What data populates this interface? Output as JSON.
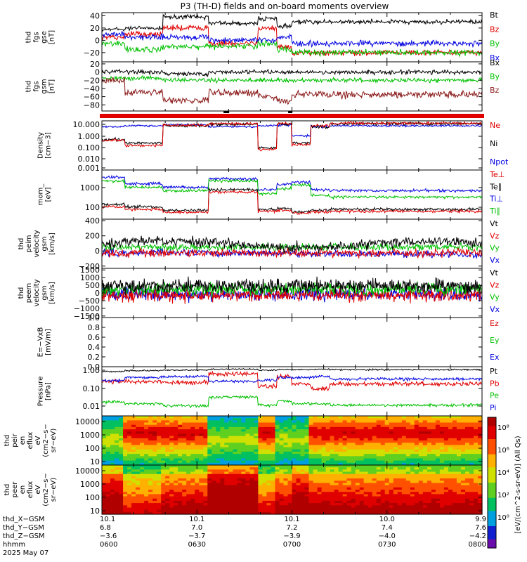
{
  "title": "P3 (TH-D) fields and on-board moments overview",
  "colors": {
    "black": "#000000",
    "red": "#e00000",
    "green": "#00c000",
    "blue": "#0000e0",
    "darkred": "#8b1a1a"
  },
  "chart_data": [
    {
      "type": "line",
      "panel": "fgs_gse",
      "ylabel": [
        "thd",
        "fgs",
        "gse",
        "[nT]"
      ],
      "yticks": [
        "40",
        "20",
        "0",
        "−20"
      ],
      "ylim": [
        -35,
        45
      ],
      "series": [
        {
          "name": "Bt",
          "color": "black",
          "level": [
            18,
            20,
            38,
            28,
            35,
            22,
            30
          ]
        },
        {
          "name": "Bz",
          "color": "red",
          "level": [
            5,
            10,
            20,
            -5,
            20,
            -10,
            -20
          ]
        },
        {
          "name": "By",
          "color": "green",
          "level": [
            -5,
            -15,
            -10,
            -10,
            -5,
            -15,
            -20
          ]
        },
        {
          "name": "Bx",
          "color": "blue",
          "level": [
            10,
            5,
            5,
            0,
            0,
            5,
            -5
          ]
        }
      ]
    },
    {
      "type": "line",
      "panel": "fgs_gsm",
      "ylabel": [
        "thd",
        "fgs",
        "gsm",
        "[nT]"
      ],
      "yticks": [
        "20",
        "0",
        "−20",
        "−40",
        "−60",
        "−80"
      ],
      "ylim": [
        -95,
        25
      ],
      "series": [
        {
          "name": "Bx",
          "color": "black",
          "level": [
            0,
            0,
            -5,
            0,
            0,
            0,
            0
          ]
        },
        {
          "name": "By",
          "color": "green",
          "level": [
            -15,
            -15,
            -20,
            -20,
            -20,
            -20,
            -20
          ]
        },
        {
          "name": "Bz",
          "color": "darkred",
          "level": [
            -20,
            -50,
            -70,
            -50,
            -60,
            -70,
            -55
          ]
        }
      ]
    },
    {
      "type": "line",
      "panel": "density",
      "ylabel": [
        "Density",
        "[cm−3]"
      ],
      "yticks": [
        "10.000",
        "1.000",
        "0.100",
        "0.010",
        "0.001"
      ],
      "ylim": [
        "1e-4",
        "30"
      ],
      "yscale": "log",
      "series": [
        {
          "name": "Ne",
          "color": "red"
        },
        {
          "name": "Ni",
          "color": "black"
        },
        {
          "name": "Npot",
          "color": "blue"
        }
      ]
    },
    {
      "type": "line",
      "panel": "temperature",
      "ylabel": [
        "mom_",
        "[eV]"
      ],
      "yticks": [
        "1000",
        "100"
      ],
      "yscale": "log",
      "series": [
        {
          "name": "Te⊥",
          "color": "red"
        },
        {
          "name": "Te∥",
          "color": "black"
        },
        {
          "name": "Ti⊥",
          "color": "blue"
        },
        {
          "name": "Ti∥",
          "color": "green"
        }
      ]
    },
    {
      "type": "line",
      "panel": "peim_velocity",
      "ylabel": [
        "thd",
        "peim",
        "velocity",
        "gsm",
        "[km/s]"
      ],
      "yticks": [
        "400",
        "200",
        "0",
        "−200"
      ],
      "ylim": [
        -230,
        420
      ],
      "series": [
        {
          "name": "Vt",
          "color": "black"
        },
        {
          "name": "Vz",
          "color": "red"
        },
        {
          "name": "Vy",
          "color": "green"
        },
        {
          "name": "Vx",
          "color": "blue"
        }
      ]
    },
    {
      "type": "line",
      "panel": "peem_velocity",
      "ylabel": [
        "thd",
        "peem",
        "velocity",
        "gsm",
        "[km/s]"
      ],
      "yticks": [
        "1500",
        "1000",
        "500",
        "0",
        "−500",
        "−1000",
        "−1500"
      ],
      "ylim": [
        -1600,
        1600
      ],
      "series": [
        {
          "name": "Vt",
          "color": "black"
        },
        {
          "name": "Vz",
          "color": "red"
        },
        {
          "name": "Vy",
          "color": "green"
        },
        {
          "name": "Vx",
          "color": "blue"
        }
      ]
    },
    {
      "type": "line",
      "panel": "efield",
      "ylabel": [
        "E=−VxB",
        "[mV/m]"
      ],
      "yticks": [
        "1.0",
        "0.8",
        "0.6",
        "0.4",
        "0.2",
        "0.0"
      ],
      "ylim": [
        0,
        1
      ],
      "series": [
        {
          "name": "Ez",
          "color": "red"
        },
        {
          "name": "Ey",
          "color": "green"
        },
        {
          "name": "Ex",
          "color": "blue"
        }
      ]
    },
    {
      "type": "line",
      "panel": "pressure",
      "ylabel": [
        "Pressure",
        "[nPa]"
      ],
      "yticks": [
        "1.00",
        "0.10",
        "0.01"
      ],
      "yscale": "log",
      "series": [
        {
          "name": "Pt",
          "color": "black"
        },
        {
          "name": "Pb",
          "color": "red"
        },
        {
          "name": "Pe",
          "color": "green"
        },
        {
          "name": "Pi",
          "color": "blue"
        }
      ]
    },
    {
      "type": "heatmap",
      "panel": "peir_en_eflux",
      "ylabel": [
        "thd",
        "peir",
        "en",
        "eflux",
        "eV",
        "(cm2−s−",
        "sr−eV)"
      ],
      "yticks": [
        "10000",
        "1000",
        "100",
        "10"
      ],
      "yscale": "log"
    },
    {
      "type": "heatmap",
      "panel": "peer_en_eflux",
      "ylabel": [
        "thd",
        "peer",
        "en",
        "eflux",
        "eV",
        "(cm2−s−",
        "sr−eV)"
      ],
      "yticks": [
        "10000",
        "1000",
        "100",
        "10"
      ],
      "yscale": "log"
    }
  ],
  "legend": {
    "p1": [
      "Bt",
      "Bz",
      "By",
      "Bx"
    ],
    "p2": [
      "Bx",
      "By",
      "Bz"
    ],
    "p3": [
      "Ne",
      "Ni",
      "Npot"
    ],
    "p4": [
      "Te⊥",
      "Te∥",
      "Ti⊥",
      "Ti∥"
    ],
    "p5": [
      "Vt",
      "Vz",
      "Vy",
      "Vx"
    ],
    "p6": [
      "Vt",
      "Vz",
      "Vy",
      "Vx"
    ],
    "p7": [
      "Ez",
      "Ey",
      "Ex"
    ],
    "p8": [
      "Pt",
      "Pb",
      "Pe",
      "Pi"
    ]
  },
  "colorbar": {
    "ticks": [
      "10⁸",
      "10⁶",
      "10⁴",
      "10²",
      "10⁰"
    ],
    "label": "[eV/(cm^2-s-sr-eV)] (All Qs)"
  },
  "xaxis": {
    "row_labels": [
      "thd_X−GSM",
      "thd_Y−GSM",
      "thd_Z−GSM",
      "hhmm",
      "2025 May 07"
    ],
    "columns": [
      {
        "x": "10.1",
        "y": "6.8",
        "z": "−3.6",
        "t": "0600"
      },
      {
        "x": "10.1",
        "y": "7.0",
        "z": "−3.7",
        "t": "0630"
      },
      {
        "x": "10.1",
        "y": "7.2",
        "z": "−3.9",
        "t": "0700"
      },
      {
        "x": "10.0",
        "y": "7.4",
        "z": "−4.0",
        "t": "0730"
      },
      {
        "x": "9.9",
        "y": "7.6",
        "z": "−4.2",
        "t": "0800"
      }
    ]
  }
}
